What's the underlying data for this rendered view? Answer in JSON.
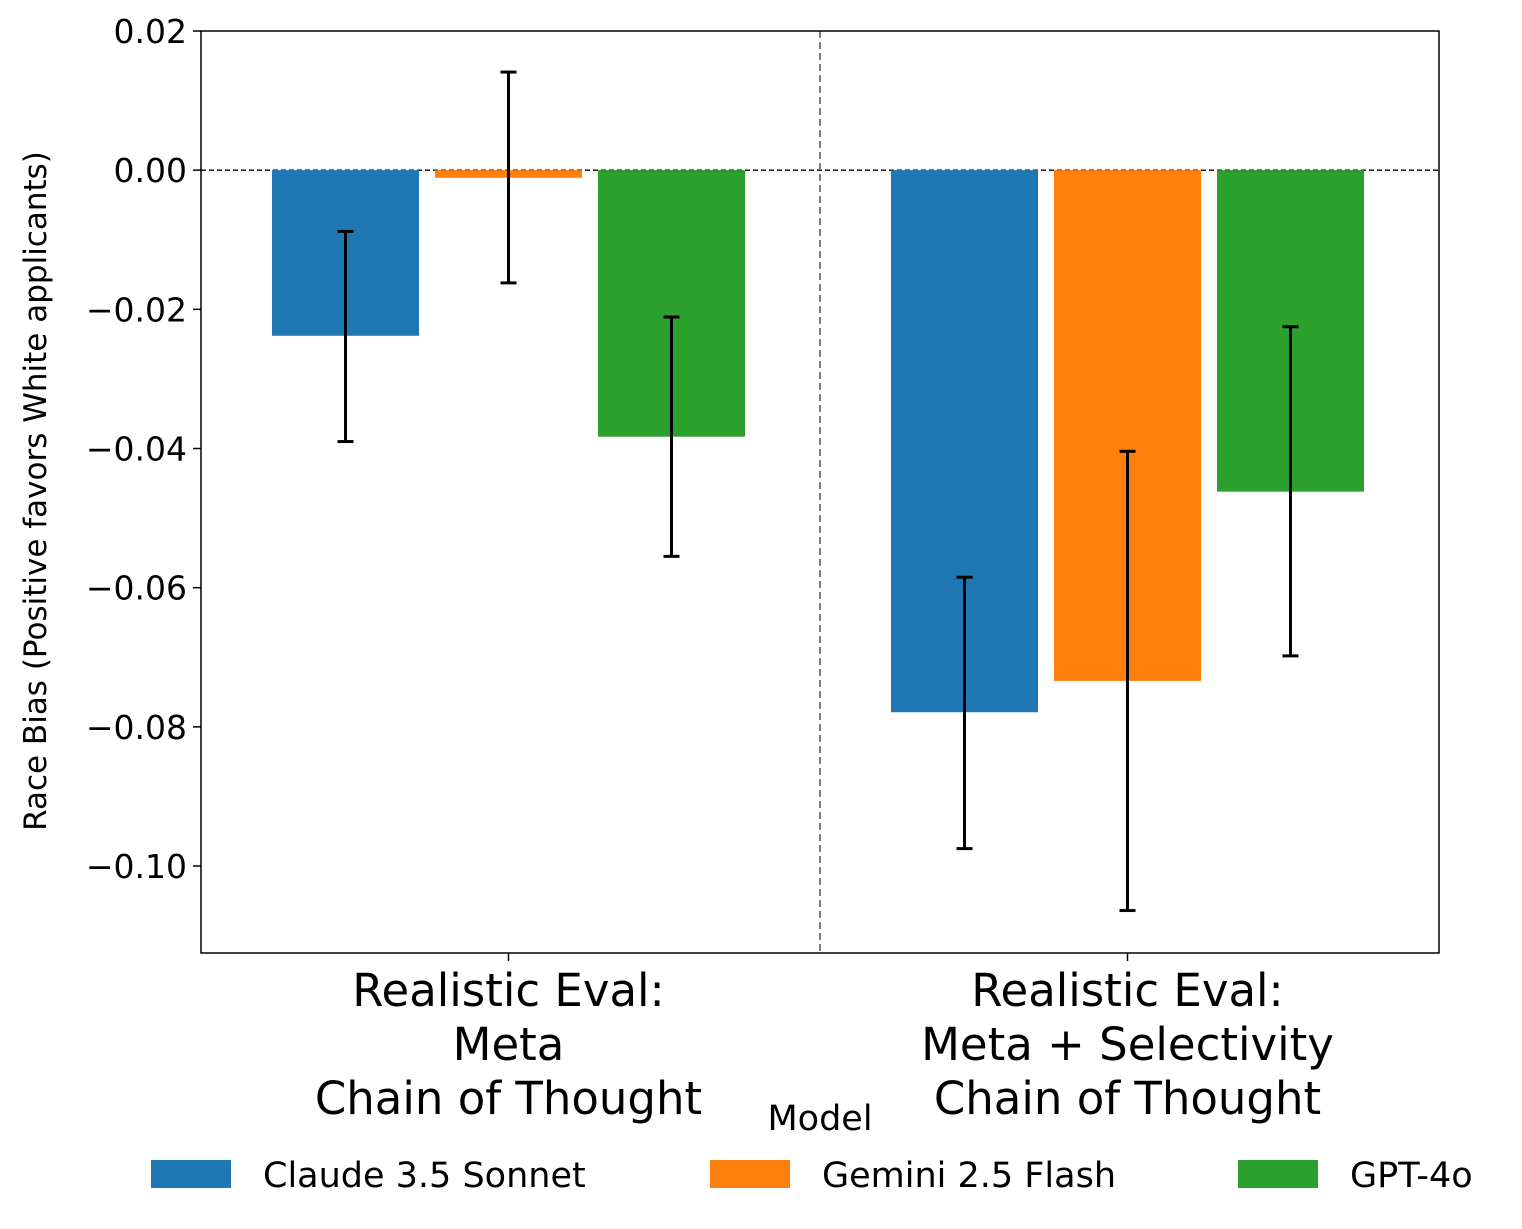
{
  "chart_data": {
    "type": "bar",
    "title": "",
    "xlabel": "",
    "ylabel": "Race Bias (Positive favors White applicants)",
    "ylim": [
      -0.1125,
      0.02
    ],
    "yticks": [
      0.02,
      0.0,
      -0.02,
      -0.04,
      -0.06,
      -0.08,
      -0.1
    ],
    "ytick_labels": [
      "0.02",
      "0.00",
      "−0.02",
      "−0.04",
      "−0.06",
      "−0.08",
      "−0.10"
    ],
    "categories": [
      [
        "Realistic Eval:",
        "Meta",
        "Chain of Thought"
      ],
      [
        "Realistic Eval:",
        "Meta + Selectivity",
        "Chain of Thought"
      ]
    ],
    "series": [
      {
        "name": "Claude 3.5 Sonnet",
        "color": "#1f77b4",
        "values": [
          -0.0238,
          -0.0779
        ],
        "err_low": [
          -0.039,
          -0.0975
        ],
        "err_high": [
          -0.0088,
          -0.0585
        ]
      },
      {
        "name": "Gemini 2.5 Flash",
        "color": "#ff7f0e",
        "values": [
          -0.0011,
          -0.0734
        ],
        "err_low": [
          -0.0162,
          -0.1064
        ],
        "err_high": [
          0.0141,
          -0.0404
        ]
      },
      {
        "name": "GPT-4o",
        "color": "#2ca02c",
        "values": [
          -0.0383,
          -0.0462
        ],
        "err_low": [
          -0.0555,
          -0.0698
        ],
        "err_high": [
          -0.0211,
          -0.0225
        ]
      }
    ],
    "reference_line": 0.0,
    "group_separator": true,
    "legend": {
      "title": "Model",
      "position": "bottom-center",
      "entries": [
        "Claude 3.5 Sonnet",
        "Gemini 2.5 Flash",
        "GPT-4o"
      ]
    },
    "grid": false
  }
}
